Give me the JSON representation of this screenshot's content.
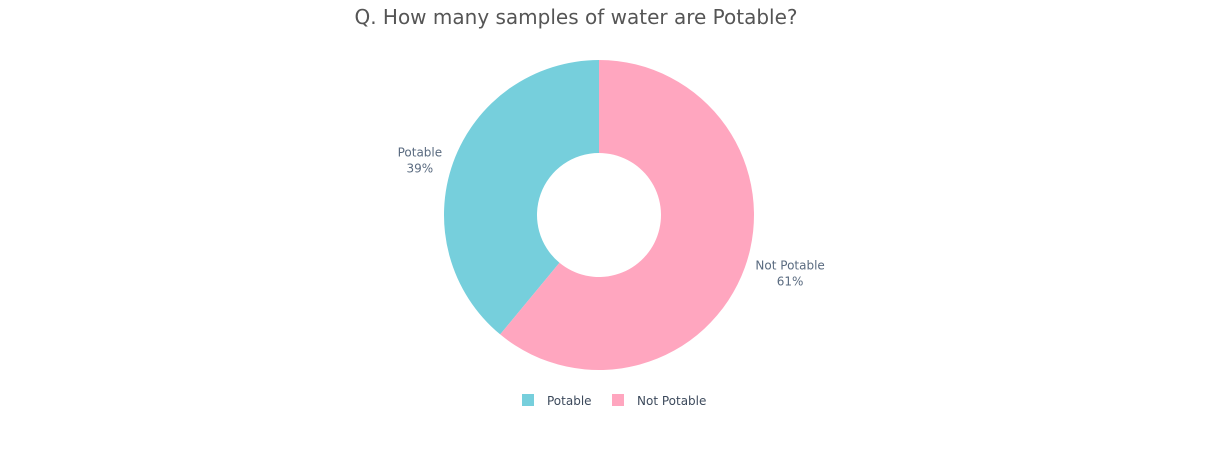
{
  "chart_data": {
    "type": "pie",
    "title": "Q. How many samples of water are Potable?",
    "hole": true,
    "categories": [
      "Potable",
      "Not Potable"
    ],
    "values": [
      39,
      61
    ],
    "labels": [
      "39%",
      "61%"
    ],
    "colors": [
      "#76cfdc",
      "#ffa6bf"
    ],
    "legend": {
      "placement": "bottom-center",
      "entries": [
        "Potable",
        "Not Potable"
      ]
    }
  }
}
